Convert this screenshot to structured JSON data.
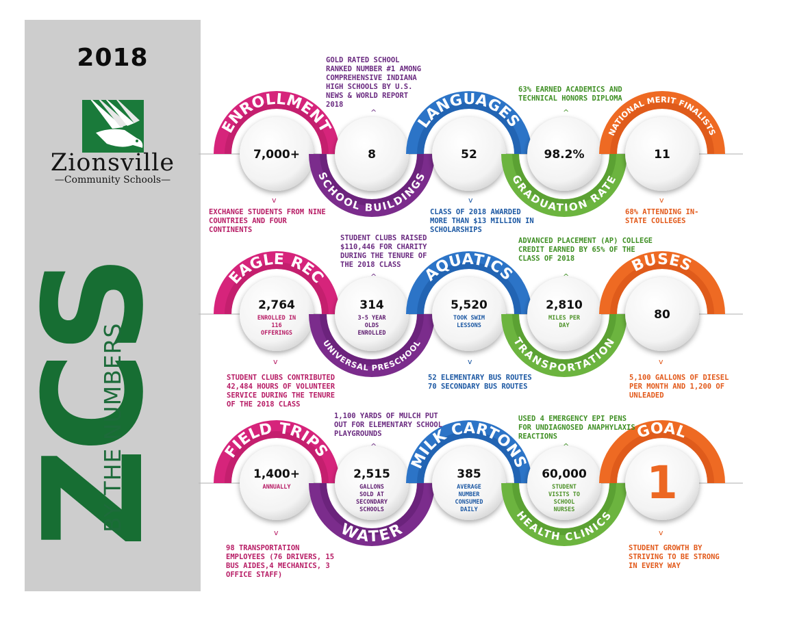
{
  "year": "2018",
  "logo": {
    "name": "Zionsville",
    "sub": "Community Schools"
  },
  "side_title": {
    "big": "ZCS",
    "sub": "BY THE NUMBERS"
  },
  "rows": [
    [
      {
        "arc": "ENROLLMENT",
        "value": "7,000+",
        "sub": "",
        "color": "#d6247b",
        "dark": "#b71c65",
        "pos": "top"
      },
      {
        "arc": "SCHOOL BUILDINGS",
        "value": "8",
        "sub": "",
        "color": "#7b2c8c",
        "dark": "#5f1d70",
        "pos": "bottom"
      },
      {
        "arc": "LANGUAGES",
        "value": "52",
        "sub": "",
        "color": "#2c74c7",
        "dark": "#1c58a3",
        "pos": "top"
      },
      {
        "arc": "GRADUATION RATE",
        "value": "98.2%",
        "sub": "",
        "color": "#6cb43f",
        "dark": "#4e9229",
        "pos": "bottom"
      },
      {
        "arc": "NATIONAL MERIT FINALISTS",
        "value": "11",
        "sub": "",
        "color": "#ee6a23",
        "dark": "#d44f15",
        "pos": "top"
      }
    ],
    [
      {
        "arc": "EAGLE REC",
        "value": "2,764",
        "sub": "ENROLLED IN 116 OFFERINGS",
        "color": "#d6247b",
        "dark": "#b71c65",
        "pos": "top"
      },
      {
        "arc": "UNIVERSAL PRESCHOOL",
        "value": "314",
        "sub": "3-5 YEAR OLDS ENROLLED",
        "color": "#7b2c8c",
        "dark": "#5f1d70",
        "pos": "bottom"
      },
      {
        "arc": "AQUATICS",
        "value": "5,520",
        "sub": "TOOK SWIM LESSONS",
        "color": "#2c74c7",
        "dark": "#1c58a3",
        "pos": "top"
      },
      {
        "arc": "TRANSPORTATION",
        "value": "2,810",
        "sub": "MILES PER DAY",
        "color": "#6cb43f",
        "dark": "#4e9229",
        "pos": "bottom"
      },
      {
        "arc": "BUSES",
        "value": "80",
        "sub": "",
        "color": "#ee6a23",
        "dark": "#d44f15",
        "pos": "top"
      }
    ],
    [
      {
        "arc": "FIELD TRIPS",
        "value": "1,400+",
        "sub": "ANNUALLY",
        "color": "#d6247b",
        "dark": "#b71c65",
        "pos": "top"
      },
      {
        "arc": "WATER",
        "value": "2,515",
        "sub": "GALLONS SOLD AT SECONDARY SCHOOLS",
        "color": "#7b2c8c",
        "dark": "#5f1d70",
        "pos": "bottom"
      },
      {
        "arc": "MILK CARTONS",
        "value": "385",
        "sub": "AVERAGE NUMBER CONSUMED DAILY",
        "color": "#2c74c7",
        "dark": "#1c58a3",
        "pos": "top"
      },
      {
        "arc": "HEALTH CLINICS",
        "value": "60,000",
        "sub": "STUDENT VISITS TO SCHOOL NURSES",
        "color": "#6cb43f",
        "dark": "#4e9229",
        "pos": "bottom"
      },
      {
        "arc": "GOAL",
        "value": "1",
        "sub": "",
        "color": "#ee6a23",
        "dark": "#d44f15",
        "pos": "top"
      }
    ]
  ],
  "notes": [
    {
      "id": "n1",
      "text": "EXCHANGE STUDENTS FROM NINE COUNTRIES AND FOUR CONTINENTS",
      "color": "#b71c65"
    },
    {
      "id": "n2",
      "text": "GOLD RATED SCHOOL RANKED NUMBER #1 AMONG COMPREHENSIVE INDIANA HIGH SCHOOLS BY U.S. NEWS & WORLD REPORT 2018",
      "color": "#6a2a80"
    },
    {
      "id": "n3",
      "text": "CLASS OF 2018 AWARDED MORE THAN $13 MILLION IN SCHOLARSHIPS",
      "color": "#1c58a3"
    },
    {
      "id": "n4",
      "text": "63% EARNED ACADEMICS AND TECHNICAL HONORS DIPLOMA",
      "color": "#3f8f24"
    },
    {
      "id": "n5",
      "text": "68% ATTENDING IN-STATE COLLEGES",
      "color": "#e2591a"
    },
    {
      "id": "n6",
      "text": "STUDENT CLUBS RAISED $110,446 FOR CHARITY DURING THE TENURE OF THE 2018 CLASS",
      "color": "#6a2a80"
    },
    {
      "id": "n7",
      "text": "STUDENT CLUBS CONTRIBUTED 42,484 HOURS OF VOLUNTEER SERVICE DURING THE TENURE OF THE 2018 CLASS",
      "color": "#b71c65"
    },
    {
      "id": "n8",
      "text": "52 ELEMENTARY BUS ROUTES 70 SECONDARY BUS ROUTES",
      "color": "#1c58a3"
    },
    {
      "id": "n9",
      "text": "ADVANCED PLACEMENT (AP) COLLEGE CREDIT EARNED BY 65% OF THE CLASS OF 2018",
      "color": "#3f8f24"
    },
    {
      "id": "n10",
      "text": "5,100 GALLONS OF DIESEL PER MONTH AND 1,200 OF UNLEADED",
      "color": "#e2591a"
    },
    {
      "id": "n11",
      "text": "98 TRANSPORTATION EMPLOYEES (76 DRIVERS, 15 BUS AIDES,4 MECHANICS, 3 OFFICE STAFF)",
      "color": "#b71c65"
    },
    {
      "id": "n12",
      "text": "1,100 YARDS OF MULCH PUT OUT FOR ELEMENTARY SCHOOL PLAYGROUNDS",
      "color": "#6a2a80"
    },
    {
      "id": "n13",
      "text": "USED 4 EMERGENCY EPI PENS FOR UNDIAGNOSED ANAPHYLAXIS REACTIONS",
      "color": "#3f8f24"
    },
    {
      "id": "n14",
      "text": "STUDENT GROWTH BY STRIVING TO BE STRONG IN EVERY WAY",
      "color": "#e2591a"
    }
  ]
}
